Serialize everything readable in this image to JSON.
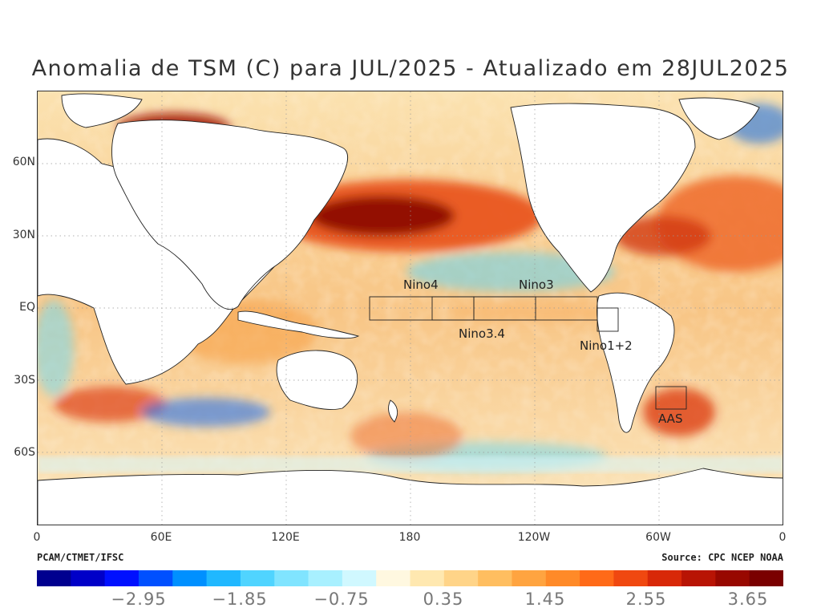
{
  "title": "Anomalia de TSM (C) para JUL/2025 - Atualizado em 28JUL2025",
  "map": {
    "y_axis_labels": [
      "60N",
      "30N",
      "EQ",
      "30S",
      "60S"
    ],
    "x_axis_labels": [
      "0",
      "60E",
      "120E",
      "180",
      "120W",
      "60W",
      "0"
    ],
    "regions": [
      "Nino4",
      "Nino3",
      "Nino3.4",
      "Nino1+2",
      "AAS"
    ],
    "colors": {
      "strong_positive": "#7a0000",
      "positive": "#e8501a",
      "weak_positive": "#f6a14a",
      "neutral": "#fbeab8",
      "weak_negative": "#7fd9ea",
      "negative": "#1e6fe0",
      "strong_negative": "#00008a",
      "land": "#ffffff",
      "coast": "#222222"
    }
  },
  "credits": {
    "left": "PCAM/CTMET/IFSC",
    "right": "Source: CPC NCEP NOAA"
  },
  "colorbar": {
    "labels": [
      "−2.95",
      "−1.85",
      "−0.75",
      "0.35",
      "1.45",
      "2.55",
      "3.65"
    ],
    "colors": [
      "#00008f",
      "#0000c8",
      "#0010ff",
      "#0050ff",
      "#0090ff",
      "#20b8ff",
      "#50d4ff",
      "#80e4ff",
      "#a8f0ff",
      "#d0f8ff",
      "#fff8e0",
      "#ffe8b0",
      "#ffd488",
      "#ffbe60",
      "#ffa440",
      "#ff8a28",
      "#ff6a18",
      "#f04810",
      "#d82808",
      "#b81404",
      "#980800",
      "#7a0000"
    ]
  }
}
